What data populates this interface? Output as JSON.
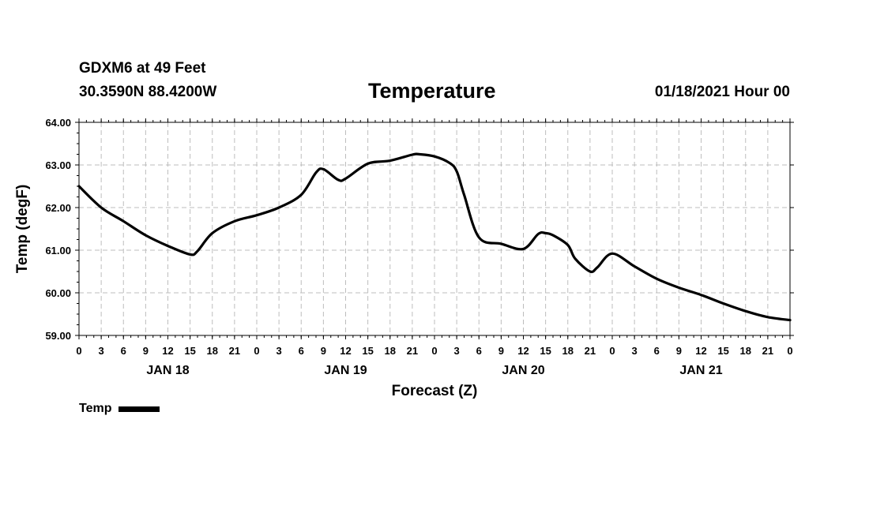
{
  "header": {
    "station": "GDXM6 at 49 Feet",
    "coords": "30.3590N 88.4200W",
    "title": "Temperature",
    "run": "01/18/2021 Hour 00"
  },
  "chart_data": {
    "type": "line",
    "title": "Temperature",
    "xlabel": "Forecast (Z)",
    "ylabel": "Temp (degF)",
    "ylim": [
      59.0,
      64.0
    ],
    "yticks": [
      "59.00",
      "60.00",
      "61.00",
      "62.00",
      "63.00",
      "64.00"
    ],
    "xlim": [
      0,
      96
    ],
    "xticks": [
      "0",
      "3",
      "6",
      "9",
      "12",
      "15",
      "18",
      "21",
      "0",
      "3",
      "6",
      "9",
      "12",
      "15",
      "18",
      "21",
      "0",
      "3",
      "6",
      "9",
      "12",
      "15",
      "18",
      "21",
      "0",
      "3",
      "6",
      "9",
      "12",
      "15",
      "18",
      "21",
      "0"
    ],
    "day_labels": [
      {
        "label": "JAN 18",
        "hour": 12
      },
      {
        "label": "JAN 19",
        "hour": 36
      },
      {
        "label": "JAN 20",
        "hour": 60
      },
      {
        "label": "JAN 21",
        "hour": 84
      }
    ],
    "grid": true,
    "legend": "bottom-left",
    "series": [
      {
        "name": "Temp",
        "x": [
          0,
          3,
          6,
          9,
          12,
          15,
          16,
          18,
          21,
          24,
          27,
          30,
          32,
          33,
          35,
          36,
          39,
          42,
          45,
          46,
          48,
          50,
          51,
          52,
          54,
          57,
          60,
          62,
          63,
          64,
          66,
          67,
          69,
          70,
          72,
          75,
          78,
          81,
          84,
          87,
          90,
          93,
          96
        ],
        "values": [
          62.5,
          62.0,
          61.68,
          61.35,
          61.1,
          60.9,
          60.98,
          61.4,
          61.68,
          61.82,
          62.0,
          62.3,
          62.82,
          62.9,
          62.65,
          62.68,
          63.03,
          63.1,
          63.24,
          63.25,
          63.2,
          63.05,
          62.85,
          62.3,
          61.3,
          61.15,
          61.03,
          61.38,
          61.4,
          61.35,
          61.12,
          60.8,
          60.5,
          60.6,
          60.92,
          60.62,
          60.33,
          60.12,
          59.95,
          59.75,
          59.57,
          59.43,
          59.36
        ]
      }
    ]
  },
  "legend": {
    "label": "Temp",
    "color": "#000000"
  }
}
